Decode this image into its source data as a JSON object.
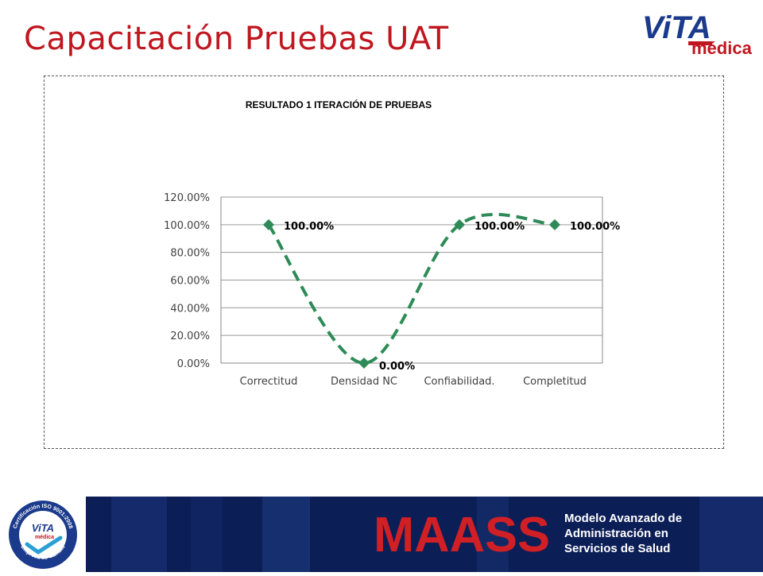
{
  "page": {
    "title": "Capacitación Pruebas UAT"
  },
  "brand": {
    "logo_top": "ViTA",
    "logo_bottom": "médica",
    "accent_color": "#c0161f",
    "logo_blue": "#1b3a8c"
  },
  "chart_data": {
    "type": "line",
    "title": "RESULTADO 1 ITERACIÓN DE PRUEBAS",
    "categories": [
      "Correctitud",
      "Densidad NC",
      "Confiabilidad.",
      "Completitud"
    ],
    "series": [
      {
        "values": [
          100,
          0,
          100,
          100
        ],
        "labels": [
          "100.00%",
          "0.00%",
          "100.00%",
          "100.00%"
        ],
        "color": "#2e8b57",
        "line_style": "dashed-smoothed",
        "marker": "diamond"
      }
    ],
    "y_ticks": [
      "0.00%",
      "20.00%",
      "40.00%",
      "60.00%",
      "80.00%",
      "100.00%",
      "120.00%"
    ],
    "ylim": [
      0,
      120
    ],
    "grid": true,
    "legend": "none"
  },
  "footer": {
    "band_color": "#0c1e56",
    "cert_ring_text": "Certificación ISO 9001:2008",
    "cert_bottom_text": "Empresa de Calidad",
    "cert_logo_top": "ViTA",
    "cert_logo_bottom": "médica",
    "maass_wordmark": "MAASS",
    "maass_color": "#d11f26",
    "tagline_lines": [
      "Modelo Avanzado de",
      "Administración en",
      "Servicios de Salud"
    ]
  }
}
